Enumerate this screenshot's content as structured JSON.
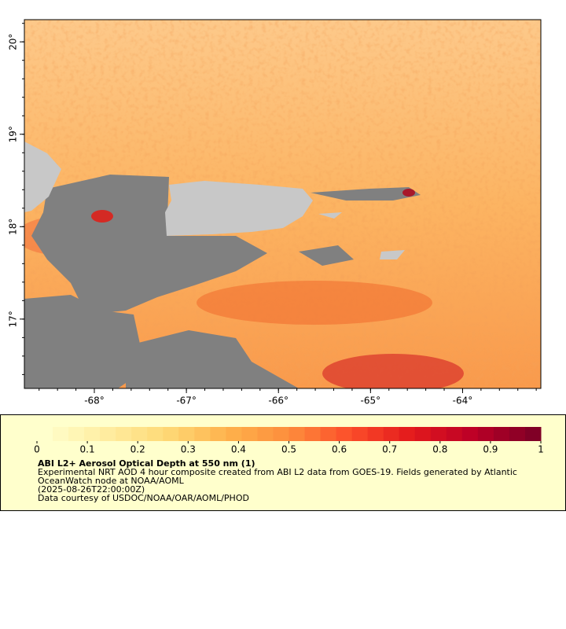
{
  "map": {
    "lat_range": [
      16.25,
      20.24
    ],
    "lon_range": [
      -68.76,
      -63.15
    ],
    "lat_ticks": [
      {
        "value": 20,
        "label": "20°"
      },
      {
        "value": 19,
        "label": "19°"
      },
      {
        "value": 18,
        "label": "18°"
      },
      {
        "value": 17,
        "label": "17°"
      }
    ],
    "lon_ticks": [
      {
        "value": -68,
        "label": "-68°"
      },
      {
        "value": -67,
        "label": "-67°"
      },
      {
        "value": -66,
        "label": "-66°"
      },
      {
        "value": -65,
        "label": "-65°"
      },
      {
        "value": -64,
        "label": "-64°"
      }
    ]
  },
  "colorbar": {
    "range": [
      0,
      1
    ],
    "ticks": [
      0,
      0.1,
      0.2,
      0.3,
      0.4,
      0.5,
      0.6,
      0.7,
      0.8,
      0.9,
      1
    ],
    "colors": [
      "#ffffcc",
      "#ffeda0",
      "#fed976",
      "#feb24c",
      "#fd8d3c",
      "#fc4e2a",
      "#e31a1c",
      "#bd0026",
      "#800026"
    ]
  },
  "caption": {
    "title": "ABI L2+ Aerosol Optical Depth at 550 nm (1)",
    "lines": [
      "Experimental NRT AOD 4 hour composite created from ABI L2 data from GOES-19. Fields generated by Atlantic",
      "OceanWatch node at NOAA/AOML",
      "(2025-08-26T22:00:00Z)",
      "Data courtesy of USDOC/NOAA/OAR/AOML/PHOD"
    ]
  }
}
